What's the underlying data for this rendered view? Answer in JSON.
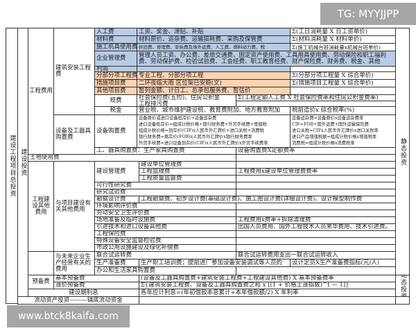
{
  "watermark_top": "TG: MYYJJPP",
  "watermark_bottom": "www.btck8kaifa.com",
  "labels": {
    "total": "建设工程项目总投资",
    "construction_investment": "建设投资",
    "engineering_cost": "工程费用",
    "building_install": "建筑安装工程费",
    "equipment_purchase": "设备及工器具购置费",
    "land_use": "土地使用费",
    "other_cost": "工程建设其他费用",
    "project_related": "与项目建设有关其他费用",
    "future_related": "与未来企业生产经营有关的费用",
    "reserve": "预备费",
    "interest": "建设期利息",
    "working_capital": "流动资产投资———铺底流动资金",
    "static": "静态投资",
    "dynamic": "动态投资"
  },
  "building": [
    {
      "name": "人工费",
      "desc": "工资、奖金、津贴、补贴",
      "formula": "Σ(工日消耗量 X 日工资单价)"
    },
    {
      "name": "材料费",
      "desc": "材料原价、运杂费、运输损耗费、采购及保管费",
      "formula": "Σ(材料消耗量 X 材料单价)"
    },
    {
      "name": "施工机具使用费",
      "desc": "折旧费、修理费、安拆费及场外运费、人工费、燃料动力费、税",
      "formula": "Σ(施工机械台班消耗量x机械台班单价)"
    },
    {
      "name": "企业管理费",
      "desc": "管理人员工资、办公费、差旅交通费、固定资产使用费、工具用具使用费、劳动保险和职工福利费、劳动保护费、检验试验费、工会经费、职工教育经费、财产保险费、财务费、税金、其他"
    },
    {
      "name": "利润"
    },
    {
      "name": "分部分项工程费",
      "desc": "专业工程、分部分项工程",
      "formula": "Σ(分部分项工程量 X 综合单价)"
    },
    {
      "name": "措施项目费",
      "desc": "二环夜临大雨 区位架已安稳(文)",
      "formula": "Σ(措施项目工程量 X 综合单价)"
    },
    {
      "name": "其他项目费",
      "desc": "暂列金额、计日工、总承包服务费、暂估价"
    },
    {
      "name": "规费",
      "desc": "社会保险费(五险)、住房公积金",
      "desc2": "工程排污费",
      "formula": "Σ(工程定额人工费 X 社会保险费率和住房公积金费率)"
    },
    {
      "name": "税金",
      "desc": "营业税、城市维护建设税、教育费附加、地方教育附加",
      "formula": "税前造价x 综合税率(%)"
    }
  ],
  "equipment": {
    "name": "设备购置费",
    "desc": [
      "设备原价或进口设备抵岸价+设备运杂费",
      "进口设备抵岸价=组成计税价格+银行财务费+外贸手续费+增值税",
      "组成计税价格=到岸价(CIF)x人民币外汇牌价+进口关税+消费税",
      "银行财务费=离岸价(FOB)x人民币外汇牌价x银行财务费率",
      "外贸手续费=进口设备到岸价(CIF)x人民币外汇牌价x外贸手续费率"
    ],
    "formula": [
      "设备运杂费=设备原价x设备运杂费率",
      "CIF=FOB+国外运费+国外运输保险费",
      "进口关税=CIFx人民币外汇牌价x进口关税率",
      "进口产品增值税额=组成计税价格x增值税率",
      "消费税=组成计税价格x消费税率"
    ],
    "tools": "工、器具购置费：生产家具购置费",
    "tools_formula": "设备购置费X定额费率"
  },
  "management": {
    "name": "建设管理费",
    "items": [
      "建设单位管理费",
      "工程监理费",
      "工程质量监督费"
    ],
    "formula": "工程费用x建设单位管理费费率"
  },
  "other_items": [
    {
      "name": "可行性研究费"
    },
    {
      "name": "研究试验费"
    },
    {
      "name": "勘察设计费",
      "desc": "工程勘察费、初步设计费(基础设计费)、施工图设计费(详细设计费)、设计模型制作费"
    },
    {
      "name": "环境影响评价费"
    },
    {
      "name": "劳动安全卫生评价费"
    },
    {
      "name": "场地准备及临时设施费",
      "formula": "工程费用x费率+拆除清理费"
    },
    {
      "name": "引进技术和进口设备其他费",
      "formula": "出国人员费用、国外工程技术人员来华费用、技术引进费。"
    },
    {
      "name": "工程保险费"
    },
    {
      "name": "特殊设备安全监督检验费"
    },
    {
      "name": "市政公用设施建设及绿化补偿费"
    }
  ],
  "future_items": [
    {
      "name": "联合试运转费",
      "formula": "联合试运转费用支出一联合试运转收入"
    },
    {
      "name": "生产准备费",
      "desc": "生产职工培训费；提前进厂参加设备安装调试等人员的",
      "formula": "设计定员X生产准备费指标(元/人)"
    },
    {
      "name": "办公和生活家具购置费"
    }
  ],
  "reserve_items": [
    {
      "name": "基本预备费",
      "formula": "(设备及工器具购置费+建筑安装工程费+工程建设其他费) X 基本预备费率"
    },
    {
      "name": "涨价预备费",
      "formula": "Σ{建筑安装工程费、设备及工器具购置费之和 x [(1 + 价格上涨指数)^t — 1]}"
    }
  ],
  "interest_formula": "各年应计利息=(年初借款本息累计+本年借款额/2) X 年利率"
}
